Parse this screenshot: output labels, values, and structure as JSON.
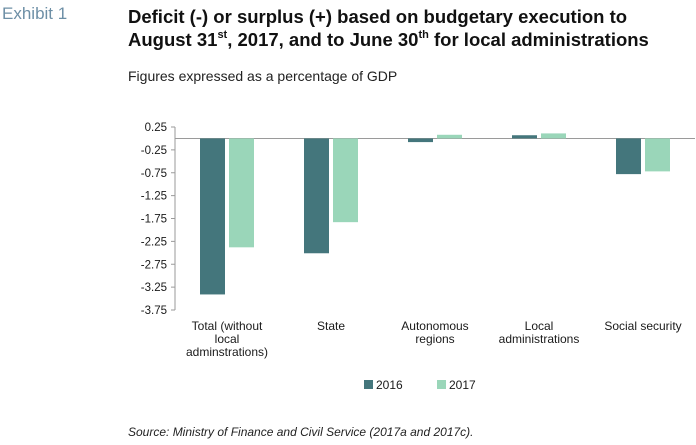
{
  "exhibit_label": "Exhibit 1",
  "title": {
    "line1": "Deficit (-) or surplus (+) based on budgetary execution to",
    "line2_part1": "August 31",
    "line2_sup1": "st",
    "line2_part2": ", 2017, and to June  30",
    "line2_sup2": "th",
    "line2_part3": " for local administrations"
  },
  "subtitle": "Figures expressed as a percentage of GDP",
  "source": "Source: Ministry of Finance and Civil Service (2017a and 2017c).",
  "chart_data": {
    "type": "bar",
    "categories": [
      [
        "Total (without",
        "local",
        "adminstrations)"
      ],
      [
        "State"
      ],
      [
        "Autonomous",
        "regions"
      ],
      [
        "Local",
        "administrations"
      ],
      [
        "Social security"
      ]
    ],
    "series": [
      {
        "name": "2016",
        "color": "#44767c",
        "values": [
          -3.41,
          -2.51,
          -0.08,
          0.07,
          -0.78
        ]
      },
      {
        "name": "2017",
        "color": "#9ad6b9",
        "values": [
          -2.38,
          -1.83,
          0.08,
          0.11,
          -0.72
        ]
      }
    ],
    "ylim": [
      -3.75,
      0.25
    ],
    "yticks": [
      "0.25",
      "-0.25",
      "-0.75",
      "-1.25",
      "-1.75",
      "-2.25",
      "-2.75",
      "-3.25",
      "-3.75"
    ],
    "legend_position": "bottom-center",
    "grid": false
  }
}
